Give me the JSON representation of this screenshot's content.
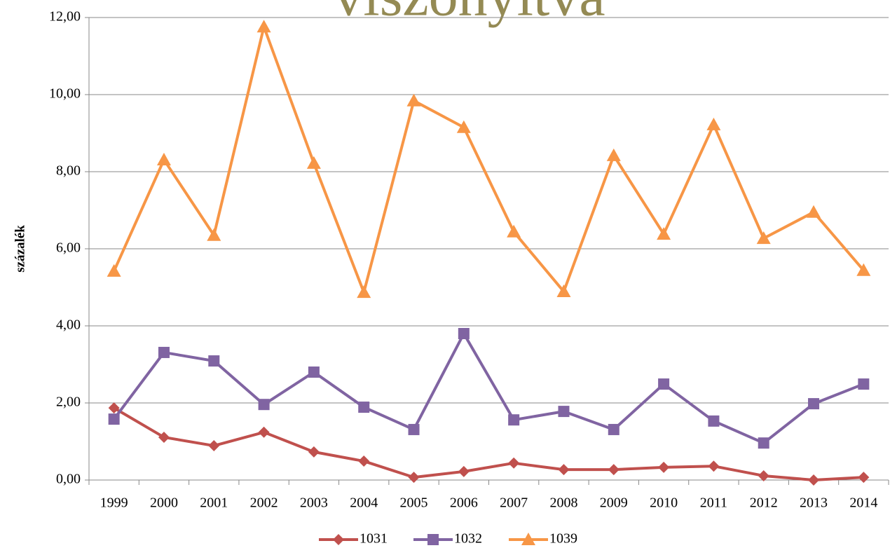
{
  "chart_data": {
    "type": "line",
    "title": "viszonyítva",
    "y_label": "százalék",
    "categories": [
      "1999",
      "2000",
      "2001",
      "2002",
      "2003",
      "2004",
      "2005",
      "2006",
      "2007",
      "2008",
      "2009",
      "2010",
      "2011",
      "2012",
      "2013",
      "2014"
    ],
    "series": [
      {
        "name": "1031",
        "color": "#c0504d",
        "marker": "diamond",
        "values": [
          1.87,
          1.11,
          0.89,
          1.24,
          0.73,
          0.49,
          0.07,
          0.22,
          0.44,
          0.27,
          0.27,
          0.33,
          0.36,
          0.11,
          0,
          0.07
        ]
      },
      {
        "name": "1032",
        "color": "#8064a2",
        "marker": "square",
        "values": [
          1.58,
          3.31,
          3.09,
          1.96,
          2.8,
          1.89,
          1.31,
          3.8,
          1.56,
          1.78,
          1.31,
          2.49,
          1.53,
          0.96,
          1.98,
          2.49
        ]
      },
      {
        "name": "1039",
        "color": "#f79646",
        "marker": "triangle",
        "values": [
          5.42,
          8.31,
          6.35,
          11.76,
          8.22,
          4.87,
          9.84,
          9.15,
          6.44,
          4.89,
          8.42,
          6.38,
          9.22,
          6.27,
          6.95,
          5.44
        ]
      }
    ],
    "ylim": [
      0,
      12
    ],
    "yticks": [
      {
        "value": 0,
        "label": "0,00"
      },
      {
        "value": 2,
        "label": "2,00"
      },
      {
        "value": 4,
        "label": "4,00"
      },
      {
        "value": 6,
        "label": "6,00"
      },
      {
        "value": 8,
        "label": "8,00"
      },
      {
        "value": 10,
        "label": "10,00"
      },
      {
        "value": 12,
        "label": "12,00"
      }
    ],
    "grid": true,
    "legend": "bottom"
  }
}
